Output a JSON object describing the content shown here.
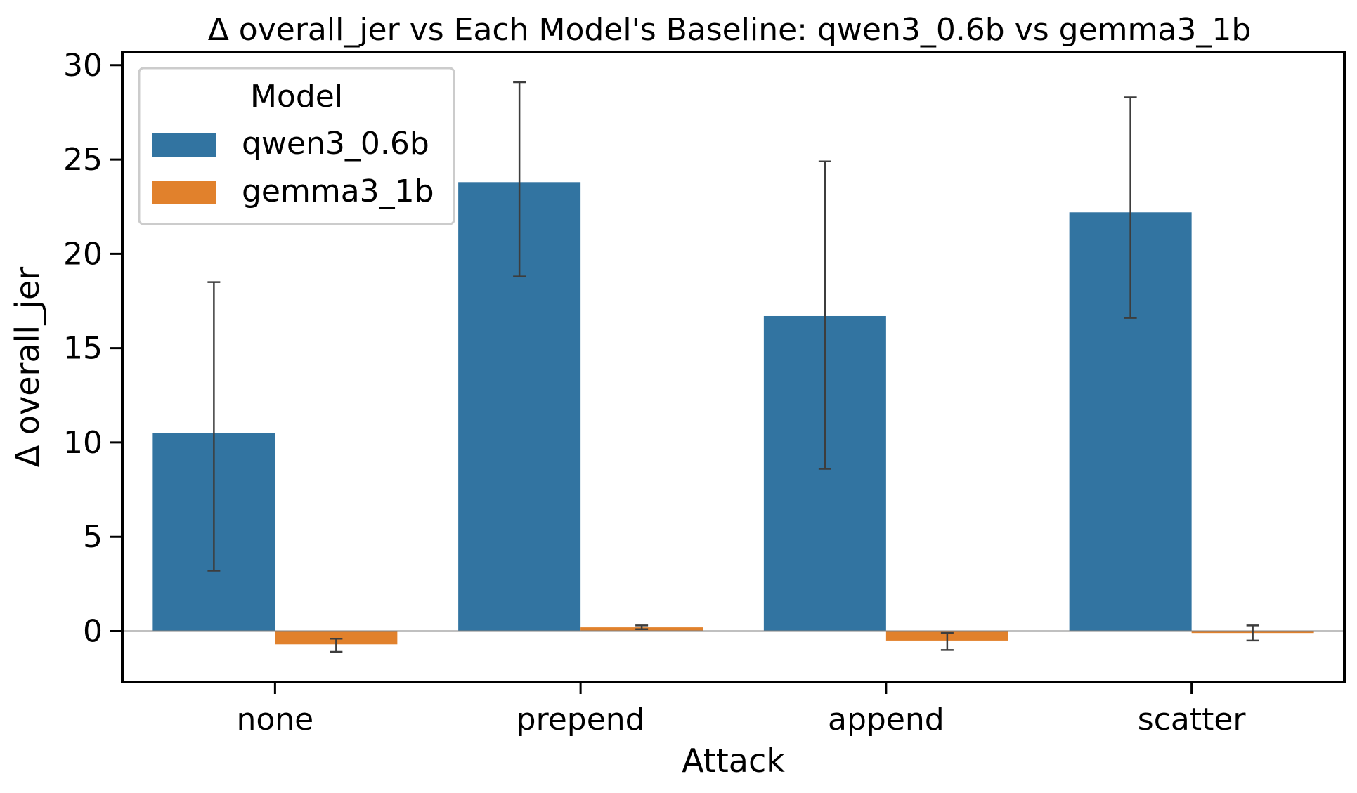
{
  "chart_data": {
    "type": "bar",
    "title": "Δ overall_jer vs Each Model's Baseline: qwen3_0.6b vs gemma3_1b",
    "xlabel": "Attack",
    "ylabel": "Δ overall_jer",
    "categories": [
      "none",
      "prepend",
      "append",
      "scatter"
    ],
    "ylim": [
      -2.7,
      30.7
    ],
    "yticks": [
      0,
      5,
      10,
      15,
      20,
      25,
      30
    ],
    "grid": false,
    "zero_line": true,
    "legend": {
      "title": "Model",
      "position": "top-left"
    },
    "series": [
      {
        "name": "qwen3_0.6b",
        "color": "#3274a1",
        "values": [
          10.5,
          23.8,
          16.7,
          22.2
        ],
        "err_low": [
          3.2,
          18.8,
          8.6,
          16.6
        ],
        "err_high": [
          18.5,
          29.1,
          24.9,
          28.3
        ]
      },
      {
        "name": "gemma3_1b",
        "color": "#e1812c",
        "values": [
          -0.7,
          0.2,
          -0.5,
          -0.1
        ],
        "err_low": [
          -1.1,
          0.1,
          -1.0,
          -0.5
        ],
        "err_high": [
          -0.4,
          0.3,
          -0.1,
          0.3
        ]
      }
    ]
  }
}
